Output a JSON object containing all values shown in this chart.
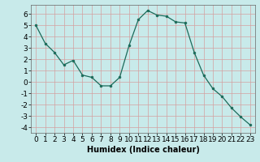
{
  "x": [
    0,
    1,
    2,
    3,
    4,
    5,
    6,
    7,
    8,
    9,
    10,
    11,
    12,
    13,
    14,
    15,
    16,
    17,
    18,
    19,
    20,
    21,
    22,
    23
  ],
  "y": [
    5.0,
    3.4,
    2.6,
    1.5,
    1.9,
    0.6,
    0.4,
    -0.35,
    -0.35,
    0.4,
    3.2,
    5.5,
    6.3,
    5.9,
    5.8,
    5.3,
    5.2,
    2.6,
    0.6,
    -0.6,
    -1.3,
    -2.3,
    -3.1,
    -3.8
  ],
  "line_color": "#1a6b5a",
  "marker": "o",
  "marker_size": 2,
  "bg_color": "#c8eaea",
  "grid_color": "#b0c8c8",
  "xlabel": "Humidex (Indice chaleur)",
  "ylim": [
    -4.5,
    6.8
  ],
  "xlim": [
    -0.5,
    23.5
  ],
  "yticks": [
    -4,
    -3,
    -2,
    -1,
    0,
    1,
    2,
    3,
    4,
    5,
    6
  ],
  "xticks": [
    0,
    1,
    2,
    3,
    4,
    5,
    6,
    7,
    8,
    9,
    10,
    11,
    12,
    13,
    14,
    15,
    16,
    17,
    18,
    19,
    20,
    21,
    22,
    23
  ],
  "xlabel_fontsize": 7,
  "tick_fontsize": 6.5
}
